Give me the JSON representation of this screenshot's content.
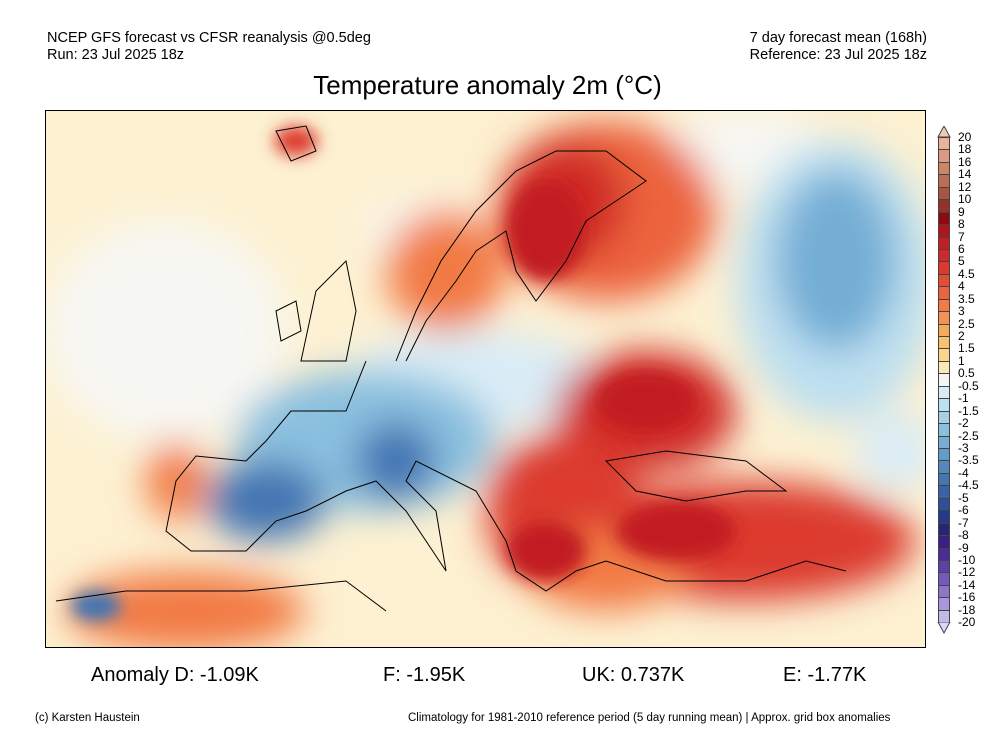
{
  "header": {
    "left_line1": "NCEP GFS forecast vs CFSR reanalysis @0.5deg",
    "left_line2": "Run: 23 Jul 2025 18z",
    "right_line1": "7 day forecast mean (168h)",
    "right_line2": "Reference: 23 Jul 2025 18z"
  },
  "title": "Temperature anomaly 2m (°C)",
  "colorbar": {
    "labels": [
      "20",
      "18",
      "16",
      "14",
      "12",
      "10",
      "9",
      "8",
      "7",
      "6",
      "5",
      "4.5",
      "4",
      "3.5",
      "3",
      "2.5",
      "2",
      "1.5",
      "1",
      "0.5",
      "-0.5",
      "-1",
      "-1.5",
      "-2",
      "-2.5",
      "-3",
      "-3.5",
      "-4",
      "-4.5",
      "-5",
      "-6",
      "-7",
      "-8",
      "-9",
      "-10",
      "-12",
      "-14",
      "-16",
      "-18",
      "-20"
    ],
    "colors": [
      "#f2c9b4",
      "#e9b29a",
      "#dc9a80",
      "#cc8567",
      "#bb6e51",
      "#a8543e",
      "#96302a",
      "#8c0a12",
      "#b0141c",
      "#c21f24",
      "#d02a28",
      "#dc3a2e",
      "#e54e35",
      "#ec643d",
      "#f27a45",
      "#f5924f",
      "#f8aa5c",
      "#fac26f",
      "#fbd68a",
      "#fbe8b4",
      "#f4f4f4",
      "#d9ecf6",
      "#bddff0",
      "#a2d0e8",
      "#8ac0df",
      "#74aed5",
      "#619cca",
      "#5089be",
      "#4375b2",
      "#3863a6",
      "#2e4f99",
      "#27398a",
      "#2a237a",
      "#3a1f86",
      "#4c2c96",
      "#5f3fa8",
      "#7558bb",
      "#8d74cc",
      "#a896dc",
      "#c5b9ea",
      "#dcd7f4"
    ]
  },
  "stats": {
    "d": "Anomaly D: -1.09K",
    "f": "F: -1.95K",
    "uk": "UK: 0.737K",
    "e": "E: -1.77K"
  },
  "footer": {
    "left": "(c) Karsten Haustein",
    "right": "Climatology for 1981-2010 reference period (5 day running mean) | Approx. grid box anomalies"
  }
}
